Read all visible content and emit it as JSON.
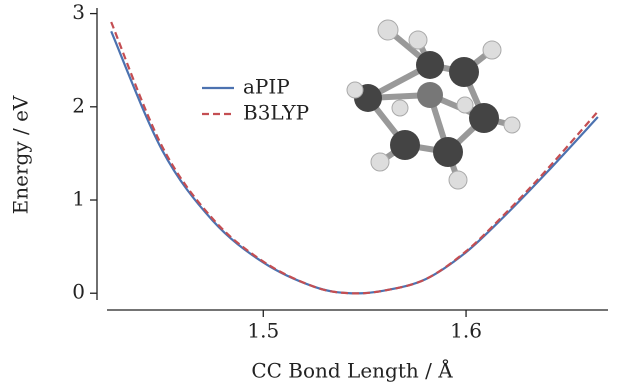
{
  "chart_data": {
    "type": "line",
    "x_label": "CC Bond Length / Å",
    "y_label": "Energy / eV",
    "x": [
      1.425,
      1.45,
      1.475,
      1.5,
      1.525,
      1.543,
      1.56,
      1.58,
      1.6,
      1.62,
      1.64,
      1.665
    ],
    "series": [
      {
        "name": "aPIP",
        "color": "#4c72b0",
        "dash": "solid",
        "values": [
          2.81,
          1.54,
          0.78,
          0.33,
          0.07,
          0,
          0.03,
          0.15,
          0.44,
          0.85,
          1.3,
          1.89
        ]
      },
      {
        "name": "B3LYP",
        "color": "#c44e52",
        "dash": "dashed",
        "values": [
          2.91,
          1.58,
          0.8,
          0.34,
          0.07,
          0,
          0.03,
          0.15,
          0.45,
          0.87,
          1.33,
          1.95
        ]
      }
    ],
    "xlim": [
      1.418,
      1.67
    ],
    "xticks": [
      1.5,
      1.6
    ],
    "ylim": [
      -0.18,
      3.06
    ],
    "yticks": [
      0,
      1,
      2,
      3
    ],
    "legend": "upper center"
  }
}
